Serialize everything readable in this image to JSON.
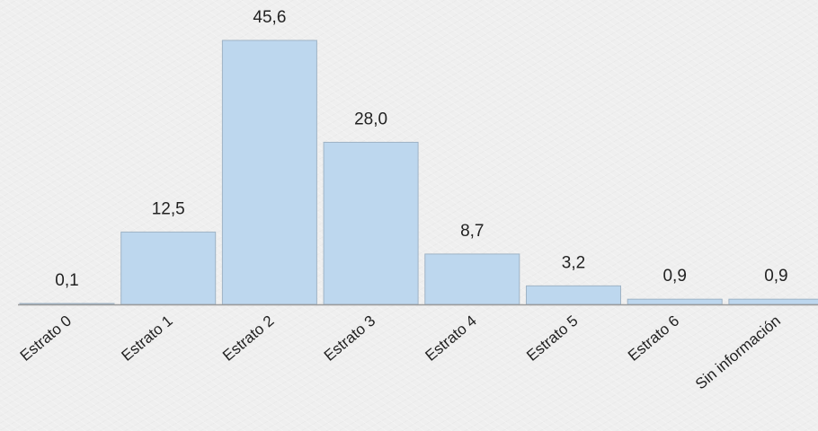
{
  "chart_data": {
    "type": "bar",
    "title": "",
    "xlabel": "",
    "ylabel": "",
    "categories": [
      "Estrato 0",
      "Estrato 1",
      "Estrato 2",
      "Estrato 3",
      "Estrato 4",
      "Estrato 5",
      "Estrato 6",
      "Sin información"
    ],
    "values": [
      0.1,
      12.5,
      45.6,
      28.0,
      8.7,
      3.2,
      0.9,
      0.9
    ],
    "data_labels": [
      "0,1",
      "12,5",
      "45,6",
      "28,0",
      "8,7",
      "3,2",
      "0,9",
      "0,9"
    ],
    "ylim": [
      0,
      45.6
    ],
    "grid": false,
    "legend": "none",
    "colors": {
      "bar_fill": "#bdd7ee",
      "bar_stroke": "#9fb3c5",
      "axis": "#9b9b9b",
      "text": "#222222",
      "background": "#efefef"
    }
  }
}
